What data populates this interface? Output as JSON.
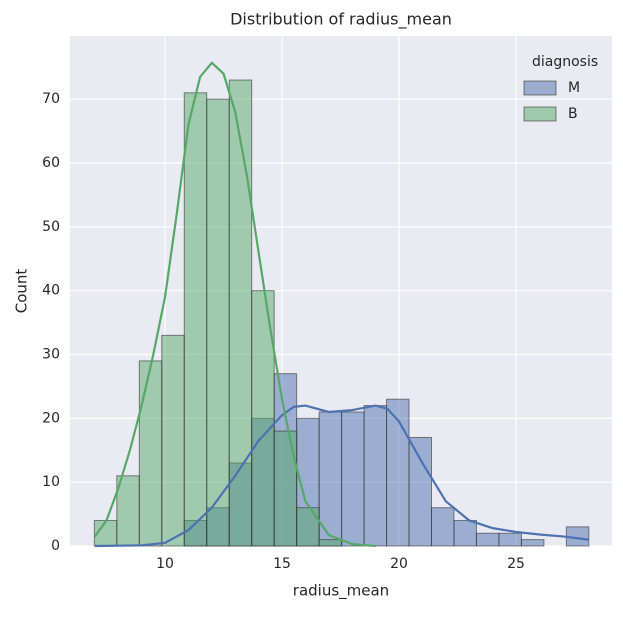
{
  "chart_data": {
    "type": "histogram",
    "title": "Distribution of radius_mean",
    "x_label": "radius_mean",
    "y_label": "Count",
    "legend_title": "diagnosis",
    "legend_position": "upper right",
    "grid": true,
    "bins": [
      6.981,
      7.941,
      8.902,
      9.862,
      10.823,
      11.783,
      12.744,
      13.704,
      14.664,
      15.625,
      16.585,
      17.546,
      18.506,
      19.467,
      20.427,
      21.387,
      22.348,
      23.308,
      24.269,
      25.229,
      26.19,
      27.15,
      28.11
    ],
    "series": [
      {
        "name": "M",
        "color": "#4c72b0",
        "values": [
          0,
          0,
          0,
          0,
          4,
          6,
          13,
          20,
          27,
          20,
          21,
          21,
          22,
          23,
          17,
          6,
          4,
          2,
          2,
          1,
          0,
          3
        ],
        "kde": {
          "x": [
            7,
            9,
            10,
            11,
            12,
            13,
            14,
            15,
            15.5,
            16,
            17,
            18,
            19,
            19.5,
            20,
            21,
            22,
            23,
            24,
            25,
            26,
            27,
            28.1
          ],
          "y": [
            0,
            0.1,
            0.5,
            2.5,
            6,
            11,
            16.5,
            20.5,
            21.8,
            22,
            21,
            21.3,
            22,
            21.5,
            19.5,
            13,
            7,
            4,
            2.8,
            2.2,
            1.8,
            1.5,
            1
          ]
        }
      },
      {
        "name": "B",
        "color": "#55a868",
        "values": [
          4,
          11,
          29,
          33,
          71,
          70,
          73,
          40,
          18,
          6,
          1,
          0,
          0,
          0,
          0,
          0,
          0,
          0,
          0,
          0,
          0,
          0
        ],
        "kde": {
          "x": [
            7,
            7.5,
            8,
            8.5,
            9,
            9.5,
            10,
            10.5,
            11,
            11.5,
            12,
            12.5,
            13,
            13.5,
            14,
            14.5,
            15,
            15.5,
            16,
            17,
            18,
            19
          ],
          "y": [
            1.5,
            4,
            9,
            15,
            22,
            30,
            39,
            52,
            66,
            73.5,
            75.7,
            74,
            68,
            58,
            46,
            34,
            23,
            14,
            7,
            1.7,
            0.3,
            0
          ]
        }
      }
    ],
    "xlim": [
      5.94,
      29.1
    ],
    "ylim": [
      0,
      79.9
    ],
    "xticks": [
      10,
      15,
      20,
      25
    ],
    "yticks": [
      0,
      10,
      20,
      30,
      40,
      50,
      60,
      70
    ]
  }
}
